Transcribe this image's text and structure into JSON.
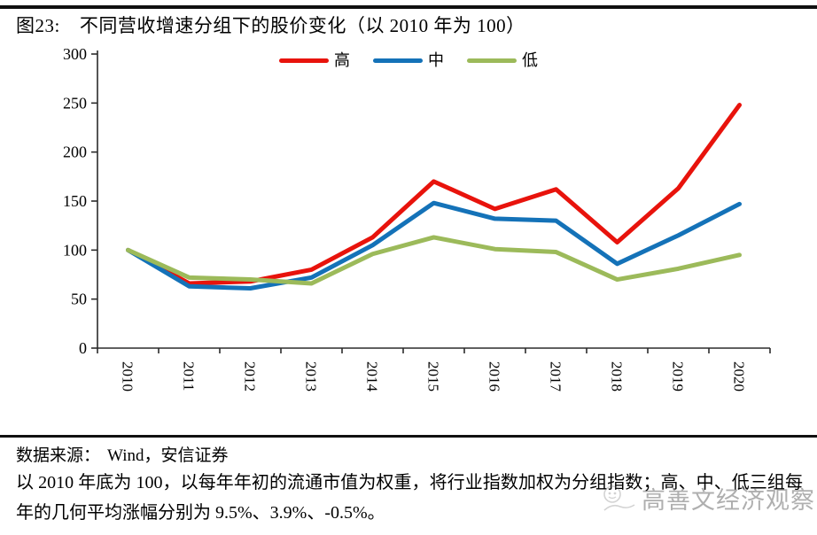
{
  "header": {
    "figure_label": "图23:",
    "title": "不同营收增速分组下的股价变化（以 2010 年为 100）"
  },
  "chart_data": {
    "type": "line",
    "title": "图23: 不同营收增速分组下的股价变化（以 2010 年为 100）",
    "categories": [
      "2010",
      "2011",
      "2012",
      "2013",
      "2014",
      "2015",
      "2016",
      "2017",
      "2018",
      "2019",
      "2020"
    ],
    "series": [
      {
        "name": "高",
        "color": "#e8130c",
        "values": [
          100,
          66,
          68,
          80,
          113,
          170,
          142,
          162,
          108,
          163,
          248
        ]
      },
      {
        "name": "中",
        "color": "#1472b8",
        "values": [
          100,
          63,
          61,
          72,
          105,
          148,
          132,
          130,
          86,
          115,
          147
        ]
      },
      {
        "name": "低",
        "color": "#9cba5a",
        "values": [
          100,
          72,
          70,
          66,
          96,
          113,
          101,
          98,
          70,
          81,
          95
        ]
      }
    ],
    "ylim": [
      0,
      300
    ],
    "yticks": [
      0,
      50,
      100,
      150,
      200,
      250,
      300
    ],
    "grid": false,
    "legend_position": "top-center",
    "x_label_rotation": 90,
    "axis_color": "#2b2b2b"
  },
  "footer": {
    "source_label": "数据来源：",
    "source_value": "Wind，安信证券",
    "note": "以 2010 年底为 100，以每年年初的流通市值为权重，将行业指数加权为分组指数；高、中、低三组每年的几何平均涨幅分别为 9.5%、3.9%、-0.5%。"
  },
  "watermark": {
    "text": "高善文经济观察"
  }
}
